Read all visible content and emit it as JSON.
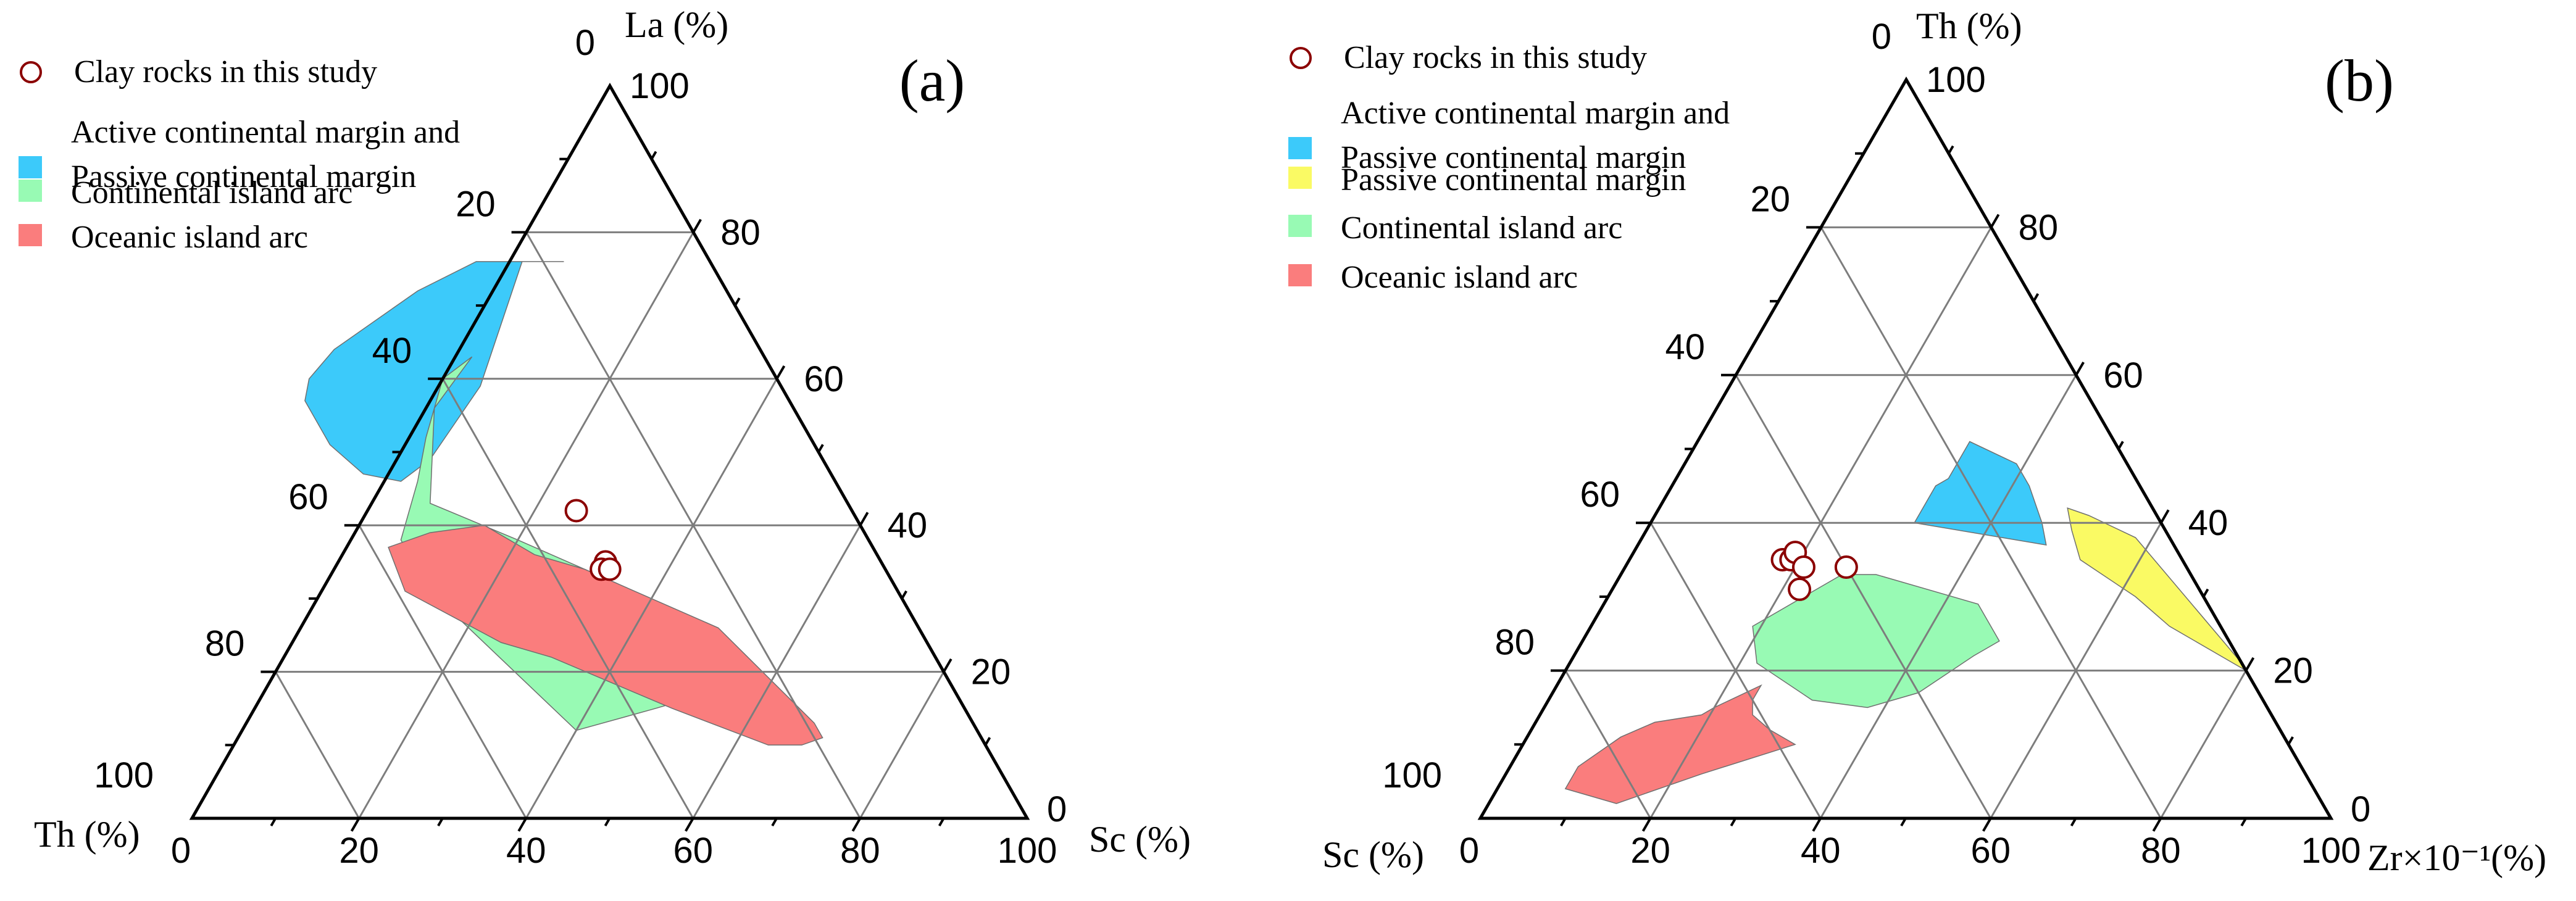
{
  "chart_data": [
    {
      "type": "ternary",
      "panel_label": "(a)",
      "apex_labels": {
        "top": "La (%)",
        "left": "Th (%)",
        "right": "Sc (%)"
      },
      "ticks": [
        "0",
        "20",
        "40",
        "60",
        "80",
        "100"
      ],
      "grid": true,
      "legend": [
        {
          "label": "Clay rocks in this study",
          "kind": "circle",
          "color": "#8b0000"
        },
        {
          "label": "Active continental margin and",
          "label2": "Passive continental margin",
          "kind": "box",
          "color": "#3ccafa"
        },
        {
          "label": "Continental island arc",
          "kind": "box",
          "color": "#98fab4"
        },
        {
          "label": "Oceanic island arc",
          "kind": "box",
          "color": "#fa7d7d"
        }
      ],
      "regions": [
        {
          "name": "Active continental margin and Passive continental margin",
          "color": "#3ccafa",
          "points": [
            [
              76,
              17.5
            ],
            [
              76,
              22.5
            ],
            [
              59,
              36
            ],
            [
              49,
              47
            ],
            [
              46,
              52
            ],
            [
              47,
              56
            ],
            [
              51,
              58
            ],
            [
              57,
              58
            ],
            [
              60,
              56
            ],
            [
              64,
              51
            ],
            [
              72,
              37
            ],
            [
              76,
              28
            ]
          ]
        },
        {
          "name": "Continental island arc",
          "color": "#98fab4",
          "points": [
            [
              63,
              35
            ],
            [
              56,
              43
            ],
            [
              43,
              50
            ],
            [
              38,
              42
            ],
            [
              32,
              33
            ],
            [
              21,
              28
            ],
            [
              17,
              30
            ],
            [
              15,
              37
            ],
            [
              12,
              48
            ],
            [
              31,
              56
            ],
            [
              38,
              56
            ],
            [
              46,
              50
            ],
            [
              52,
              46
            ],
            [
              60,
              40
            ]
          ]
        },
        {
          "name": "Oceanic island arc",
          "color": "#fa7d7d",
          "points": [
            [
              40,
              45
            ],
            [
              36,
              41
            ],
            [
              34,
              36
            ],
            [
              26,
              24
            ],
            [
              13,
              19
            ],
            [
              11,
              19
            ],
            [
              10,
              22
            ],
            [
              10,
              26
            ],
            [
              15,
              35
            ],
            [
              22,
              46
            ],
            [
              24,
              51
            ],
            [
              31,
              59
            ],
            [
              37,
              58
            ],
            [
              39,
              52
            ]
          ]
        }
      ],
      "points": [
        {
          "la": 42,
          "th": 33,
          "sc": 25
        },
        {
          "la": 35,
          "th": 33,
          "sc": 32
        },
        {
          "la": 34,
          "th": 34,
          "sc": 32
        },
        {
          "la": 34,
          "th": 33,
          "sc": 33
        }
      ]
    },
    {
      "type": "ternary",
      "panel_label": "(b)",
      "apex_labels": {
        "top": "Th (%)",
        "left": "Sc (%)",
        "right": "Zr×10⁻¹(%)"
      },
      "ticks": [
        "0",
        "20",
        "40",
        "60",
        "80",
        "100"
      ],
      "grid": true,
      "legend": [
        {
          "label": "Clay rocks in this study",
          "kind": "circle",
          "color": "#8b0000"
        },
        {
          "label": "Active continental margin and",
          "label2": "Passive continental margin",
          "kind": "box",
          "color": "#3ccafa"
        },
        {
          "label": "Passive continental margin",
          "kind": "box",
          "color": "#fafa64"
        },
        {
          "label": "Continental island arc",
          "kind": "box",
          "color": "#98fab4"
        },
        {
          "label": "Oceanic island arc",
          "kind": "box",
          "color": "#fa7d7d"
        }
      ],
      "regions": [
        {
          "name": "Active continental margin and Passive continental margin",
          "color": "#3ccafa",
          "points": [
            [
              40,
              29,
              31
            ],
            [
              45,
              24,
              31
            ],
            [
              46,
              22,
              32
            ],
            [
              48,
              20,
              32
            ],
            [
              50,
              18,
              32
            ],
            [
              51,
              17,
              32
            ],
            [
              48,
              13,
              39
            ],
            [
              45,
              13,
              42
            ],
            [
              40,
              14,
              46
            ],
            [
              37,
              15,
              48
            ]
          ]
        },
        {
          "name": "Passive continental margin",
          "color": "#fafa64",
          "points": [
            [
              21,
              0,
              79
            ],
            [
              20,
              0,
              80
            ],
            [
              26,
              6,
              68
            ],
            [
              30,
              8,
              62
            ],
            [
              35,
              12,
              53
            ],
            [
              39,
              11,
              50
            ],
            [
              42,
              10,
              48
            ],
            [
              41,
              8,
              51
            ],
            [
              38,
              4,
              58
            ]
          ]
        },
        {
          "name": "Continental island arc",
          "color": "#98fab4",
          "points": [
            [
              33,
              41,
              26
            ],
            [
              30,
              47,
              23
            ],
            [
              26,
              55,
              19
            ],
            [
              21,
              57,
              22
            ],
            [
              16,
              53,
              31
            ],
            [
              15,
              47,
              38
            ],
            [
              17,
              40,
              43
            ],
            [
              22,
              31,
              47
            ],
            [
              24,
              27,
              49
            ],
            [
              29,
              27,
              44
            ],
            [
              33,
              37,
              30
            ]
          ]
        },
        {
          "name": "Oceanic island arc",
          "color": "#fa7d7d",
          "points": [
            [
              18,
              58,
              24
            ],
            [
              16,
              60,
              24
            ],
            [
              14,
              61,
              25
            ],
            [
              12,
              60,
              28
            ],
            [
              10,
              58,
              32
            ],
            [
              6,
              71,
              23
            ],
            [
              2,
              83,
              15
            ],
            [
              4,
              88,
              8
            ],
            [
              7,
              85,
              8
            ],
            [
              11,
              78,
              11
            ],
            [
              13,
              73,
              14
            ],
            [
              14,
              67,
              19
            ],
            [
              15,
              65,
              20
            ]
          ]
        }
      ],
      "points": [
        {
          "th": 35,
          "sc": 47,
          "zr": 18
        },
        {
          "th": 35,
          "sc": 46,
          "zr": 19
        },
        {
          "th": 36,
          "sc": 45,
          "zr": 19
        },
        {
          "th": 34,
          "sc": 45,
          "zr": 21
        },
        {
          "th": 31,
          "sc": 47,
          "zr": 22
        },
        {
          "th": 34,
          "sc": 40,
          "zr": 26
        }
      ]
    }
  ]
}
